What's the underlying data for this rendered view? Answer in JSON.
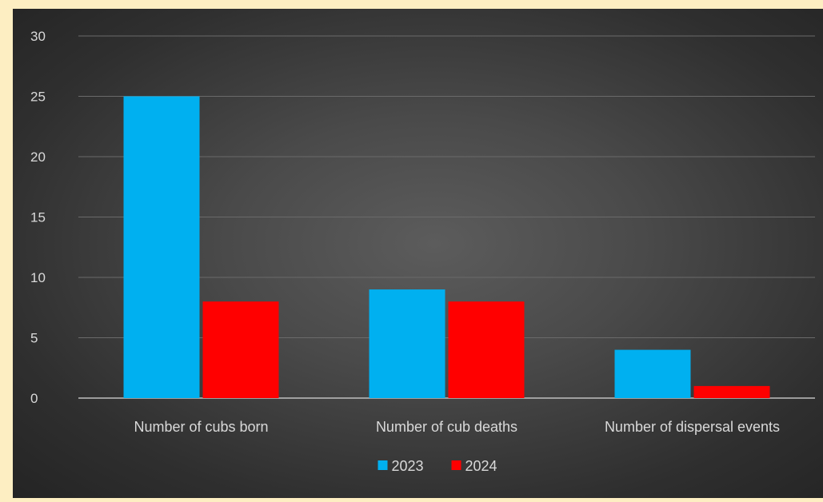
{
  "chart_data": {
    "type": "bar",
    "categories": [
      "Number of cubs born",
      "Number of cub deaths",
      "Number of dispersal events"
    ],
    "series": [
      {
        "name": "2023",
        "values": [
          25,
          9,
          4
        ],
        "color": "#00b0f0"
      },
      {
        "name": "2024",
        "values": [
          8,
          8,
          1
        ],
        "color": "#ff0000"
      }
    ],
    "ylim": [
      0,
      30
    ],
    "yticks": [
      0,
      5,
      10,
      15,
      20,
      25,
      30
    ],
    "grid": true,
    "legend": "bottom-center"
  }
}
